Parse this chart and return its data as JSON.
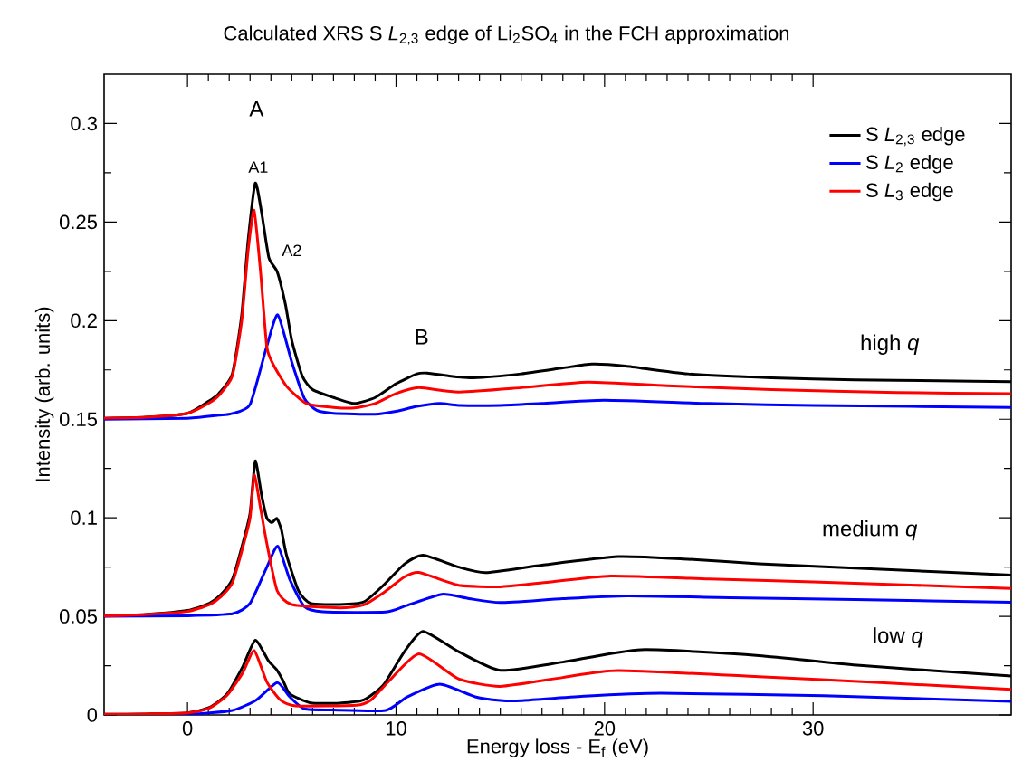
{
  "chart_data": {
    "type": "line",
    "title": "Calculated XRS S *L*$_{2,3}$ edge of Li$_{2}$SO$_{4}$  in the FCH approximation",
    "xlabel": "Energy loss - E$_{f}$ (eV)",
    "ylabel": "Intensity (arb. units)",
    "xlim": [
      -4,
      39.5
    ],
    "xticks": [
      0,
      10,
      20,
      30
    ],
    "ylim": [
      0,
      0.325
    ],
    "yticks": [
      0,
      0.05,
      0.1,
      0.15,
      0.2,
      0.25,
      0.3
    ],
    "legend": "top right",
    "grid": false,
    "marker": "none",
    "line_style": "solid",
    "series": [
      {
        "name": "S *L*$_{2,3}$ edge",
        "color": "#000000",
        "x": [
          -4,
          -2,
          0,
          1,
          1.5,
          2.15,
          2.6,
          2.9,
          3.25,
          3.55,
          3.9,
          4.3,
          4.7,
          5,
          5.5,
          6,
          7,
          8,
          9,
          10,
          11,
          11.5,
          12.5,
          13.7,
          16,
          18,
          19.4,
          21,
          24,
          28,
          32,
          36,
          39.5
        ],
        "values": [
          0.1505,
          0.151,
          0.153,
          0.159,
          0.163,
          0.173,
          0.203,
          0.24,
          0.2697,
          0.255,
          0.232,
          0.2248,
          0.208,
          0.19,
          0.172,
          0.165,
          0.161,
          0.158,
          0.161,
          0.168,
          0.173,
          0.1734,
          0.172,
          0.171,
          0.173,
          0.176,
          0.178,
          0.177,
          0.173,
          0.171,
          0.17,
          0.1695,
          0.169
        ]
      },
      {
        "name": "S *L*$_{2}$ edge",
        "color": "#0000ff",
        "x": [
          -4,
          0,
          1.5,
          2.15,
          3.0,
          3.8,
          4.33,
          5.0,
          5.6,
          6.2,
          7,
          9,
          10,
          11,
          12.1,
          13,
          15,
          17,
          20,
          25,
          30,
          39.5
        ],
        "values": [
          0.15,
          0.1505,
          0.152,
          0.1529,
          0.1575,
          0.187,
          0.2029,
          0.179,
          0.1606,
          0.1545,
          0.153,
          0.1525,
          0.154,
          0.1565,
          0.158,
          0.157,
          0.157,
          0.158,
          0.1596,
          0.158,
          0.157,
          0.156
        ]
      },
      {
        "name": "S *L*$_{3}$ edge",
        "color": "#ff0000",
        "x": [
          -4,
          -2,
          0,
          1,
          1.5,
          2.15,
          2.6,
          2.9,
          3.19,
          3.5,
          3.8,
          4.1,
          4.75,
          5.7,
          7,
          8,
          9,
          10,
          11.1,
          13,
          16,
          19.2,
          23,
          28,
          34,
          39.5
        ],
        "values": [
          0.1505,
          0.151,
          0.153,
          0.158,
          0.162,
          0.172,
          0.2,
          0.235,
          0.256,
          0.225,
          0.187,
          0.178,
          0.1667,
          0.158,
          0.156,
          0.1557,
          0.158,
          0.163,
          0.166,
          0.1638,
          0.166,
          0.1688,
          0.167,
          0.165,
          0.1635,
          0.163
        ]
      },
      {
        "color": "#000000",
        "x": [
          -4,
          -2,
          0,
          1.05,
          1.6,
          2.15,
          2.6,
          3.0,
          3.25,
          3.55,
          3.8,
          4.05,
          4.28,
          4.5,
          4.75,
          5.33,
          5.9,
          7.3,
          8.45,
          9.4,
          10.4,
          11.3,
          13,
          14.3,
          17,
          20.65,
          24,
          27.4,
          33,
          39.5
        ],
        "values": [
          0.0502,
          0.051,
          0.053,
          0.0566,
          0.061,
          0.0688,
          0.085,
          0.1024,
          0.1288,
          0.1116,
          0.1,
          0.0975,
          0.0997,
          0.094,
          0.081,
          0.0628,
          0.0566,
          0.056,
          0.0573,
          0.0658,
          0.0765,
          0.081,
          0.075,
          0.0722,
          0.076,
          0.0803,
          0.079,
          0.0767,
          0.074,
          0.0709
        ]
      },
      {
        "color": "#0000ff",
        "x": [
          -4,
          0,
          2.15,
          3.0,
          3.8,
          4.33,
          4.9,
          5.6,
          6.5,
          9.5,
          10.5,
          12.2,
          13.5,
          15,
          18,
          21.1,
          26,
          32,
          39.5
        ],
        "values": [
          0.05,
          0.0503,
          0.0513,
          0.0566,
          0.0749,
          0.0856,
          0.0688,
          0.055,
          0.0523,
          0.0522,
          0.0555,
          0.0612,
          0.059,
          0.057,
          0.059,
          0.0604,
          0.0595,
          0.0585,
          0.0571
        ]
      },
      {
        "color": "#ff0000",
        "x": [
          -4,
          -2,
          0,
          1.05,
          1.6,
          2.15,
          2.6,
          3.0,
          3.2,
          3.5,
          3.8,
          4.3,
          5.0,
          7.3,
          8.45,
          9.4,
          10.4,
          11.1,
          13,
          15,
          17,
          20.3,
          25,
          30,
          39.5
        ],
        "values": [
          0.0502,
          0.051,
          0.0525,
          0.056,
          0.06,
          0.067,
          0.083,
          0.1,
          0.1216,
          0.105,
          0.0872,
          0.063,
          0.056,
          0.0543,
          0.0558,
          0.062,
          0.07,
          0.0723,
          0.0658,
          0.065,
          0.067,
          0.0705,
          0.069,
          0.0675,
          0.0642
        ]
      },
      {
        "color": "#000000",
        "x": [
          -4,
          -2,
          0,
          1.05,
          1.9,
          2.65,
          3.25,
          3.88,
          4.28,
          4.6,
          4.9,
          5.9,
          7.3,
          8.45,
          9.4,
          10.4,
          11.3,
          13,
          15,
          18,
          21.75,
          27.4,
          32.1,
          39.5
        ],
        "values": [
          0.0003,
          0.0005,
          0.001,
          0.0038,
          0.0107,
          0.0245,
          0.0379,
          0.0275,
          0.0229,
          0.017,
          0.0107,
          0.0061,
          0.006,
          0.0076,
          0.0153,
          0.0321,
          0.0424,
          0.0321,
          0.0226,
          0.0268,
          0.0331,
          0.0301,
          0.0252,
          0.0197
        ]
      },
      {
        "color": "#0000ff",
        "x": [
          -4,
          0,
          2.15,
          3.3,
          4.3,
          4.9,
          5.6,
          7,
          9.5,
          10.55,
          12.1,
          13.8,
          15,
          16,
          19,
          22.7,
          30.5,
          39.5
        ],
        "values": [
          0.0,
          0.0003,
          0.0023,
          0.0076,
          0.0164,
          0.0092,
          0.0031,
          0.0025,
          0.0023,
          0.0092,
          0.0156,
          0.0092,
          0.0073,
          0.0072,
          0.0095,
          0.011,
          0.0097,
          0.0069
        ]
      },
      {
        "color": "#ff0000",
        "x": [
          -4,
          -2,
          0,
          1.05,
          1.9,
          2.65,
          3.2,
          3.8,
          4.45,
          5.2,
          8.1,
          8.8,
          9.65,
          11.1,
          13,
          15,
          18,
          20.65,
          27.4,
          33,
          39.5
        ],
        "values": [
          0.0003,
          0.0005,
          0.001,
          0.0035,
          0.01,
          0.0214,
          0.0326,
          0.0168,
          0.0076,
          0.0046,
          0.0049,
          0.0076,
          0.017,
          0.031,
          0.0183,
          0.0145,
          0.019,
          0.0225,
          0.0194,
          0.0165,
          0.013
        ]
      }
    ],
    "annotations": [
      "A",
      "A1",
      "A2",
      "B",
      "high *q*",
      "medium *q*",
      "low *q*"
    ]
  }
}
